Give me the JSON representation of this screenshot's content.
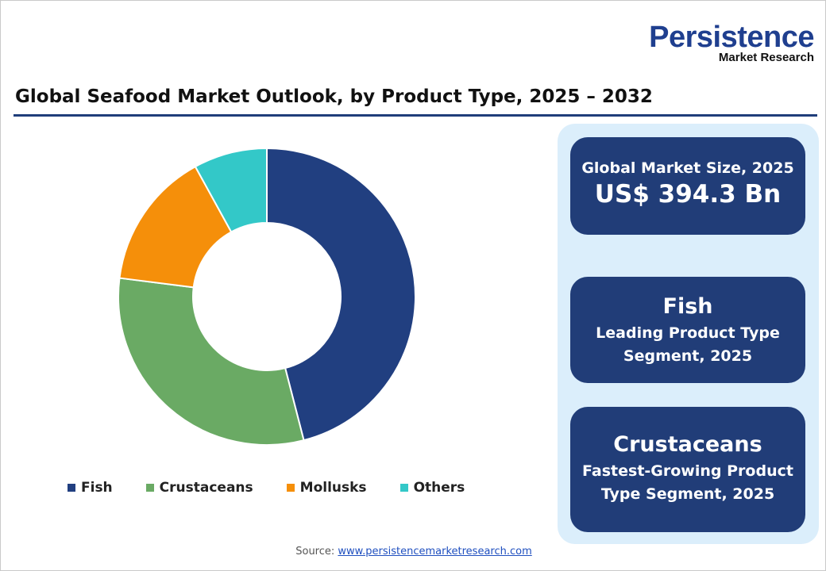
{
  "logo": {
    "line1": "Persistence",
    "line2": "Market Research"
  },
  "title": "Global Seafood Market Outlook, by Product Type, 2025 – 2032",
  "chart_data": {
    "type": "pie",
    "donut": true,
    "categories": [
      "Fish",
      "Crustaceans",
      "Mollusks",
      "Others"
    ],
    "values": [
      46,
      31,
      15,
      8
    ],
    "colors": [
      "#213f80",
      "#6aaa64",
      "#f58f0a",
      "#33c8c8"
    ],
    "legend": "bottom"
  },
  "cards": [
    {
      "line1": "Global Market Size, 2025",
      "line2": "US$ 394.3 Bn"
    },
    {
      "line1": "Fish",
      "line2": "Leading Product Type",
      "line3": "Segment, 2025"
    },
    {
      "line1": "Crustaceans",
      "line2": "Fastest-Growing Product",
      "line3": "Type Segment, 2025"
    }
  ],
  "source": {
    "label": "Source:",
    "link": "www.persistencemarketresearch.com"
  }
}
